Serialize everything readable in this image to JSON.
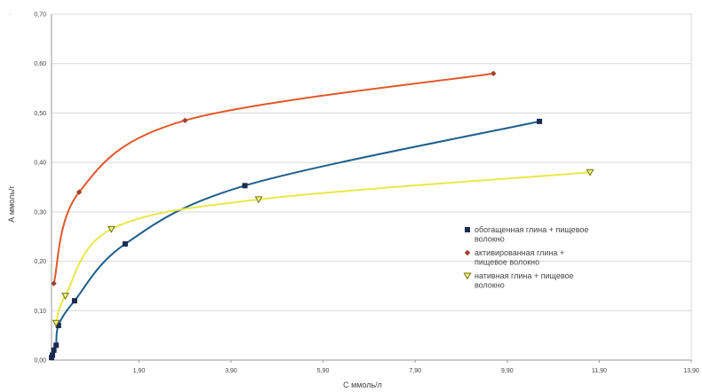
{
  "chart_data": {
    "type": "line",
    "title": "",
    "xlabel": "С ммоль/л",
    "ylabel": "А ммоль/г",
    "xlim": [
      0,
      13.9
    ],
    "ylim": [
      0,
      0.7
    ],
    "x_ticks": [
      "1,90",
      "3,90",
      "5,90",
      "7,90",
      "9,90",
      "11,90",
      "13,90"
    ],
    "x_tick_values": [
      1.9,
      3.9,
      5.9,
      7.9,
      9.9,
      11.9,
      13.9
    ],
    "y_ticks": [
      "0,00",
      "0,10",
      "0,20",
      "0,30",
      "0,40",
      "0,50",
      "0,60",
      "0,70"
    ],
    "y_tick_values": [
      0,
      0.1,
      0.2,
      0.3,
      0.4,
      0.5,
      0.6,
      0.7
    ],
    "grid": "horizontal",
    "legend_position": "right",
    "series": [
      {
        "name": "обогащенная глина + пищевое волокно",
        "color": "#1f5f8b",
        "marker": "square",
        "marker_color": "#1a2a50",
        "legend_lines": [
          "обогащенная глина + пищевое",
          "волокно"
        ],
        "x": [
          0.0,
          0.02,
          0.05,
          0.1,
          0.15,
          0.5,
          1.6,
          4.2,
          10.6
        ],
        "y": [
          0.005,
          0.01,
          0.02,
          0.03,
          0.07,
          0.12,
          0.235,
          0.353,
          0.483
        ]
      },
      {
        "name": "активированная глина + пищевое волокно",
        "color": "#e0592a",
        "marker": "diamond",
        "marker_color": "#a0402a",
        "legend_lines": [
          "активированная глина +",
          "пищевое волокно"
        ],
        "x": [
          0.05,
          0.6,
          2.9,
          9.6
        ],
        "y": [
          0.155,
          0.34,
          0.485,
          0.58
        ]
      },
      {
        "name": "нативная глина + пищевое волокно",
        "color": "#e8e84a",
        "marker": "triangle-down",
        "marker_color": "#707018",
        "legend_lines": [
          "нативная глина + пищевое",
          "волокно"
        ],
        "x": [
          0.1,
          0.3,
          1.3,
          4.5,
          11.7
        ],
        "y": [
          0.075,
          0.13,
          0.265,
          0.325,
          0.38
        ]
      }
    ]
  },
  "corner_mark": "·"
}
